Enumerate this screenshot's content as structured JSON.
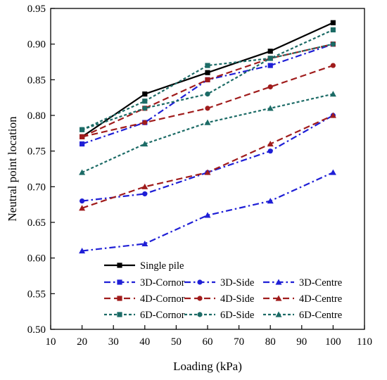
{
  "chart_data": {
    "type": "line",
    "xlabel": "Loading (kPa)",
    "ylabel": "Neutral point location",
    "xlim": [
      10,
      110
    ],
    "ylim": [
      0.5,
      0.95
    ],
    "xticks": [
      "10",
      "20",
      "30",
      "40",
      "50",
      "60",
      "70",
      "80",
      "90",
      "100",
      "110"
    ],
    "yticks": [
      "0.50",
      "0.55",
      "0.60",
      "0.65",
      "0.70",
      "0.75",
      "0.80",
      "0.85",
      "0.90",
      "0.95"
    ],
    "grid": false,
    "legend_position": "bottom-center",
    "x": [
      20,
      40,
      60,
      80,
      100
    ],
    "series": [
      {
        "name": "Single pile",
        "values": [
          0.77,
          0.83,
          0.86,
          0.89,
          0.93
        ],
        "color": "#000000",
        "dash": "solid",
        "marker": "square"
      },
      {
        "name": "3D-Cornor",
        "values": [
          0.76,
          0.79,
          0.85,
          0.87,
          0.9
        ],
        "color": "#1f1fd6",
        "dash": "dashdot",
        "marker": "square"
      },
      {
        "name": "3D-Side",
        "values": [
          0.68,
          0.69,
          0.72,
          0.75,
          0.8
        ],
        "color": "#1f1fd6",
        "dash": "dashdot",
        "marker": "circle"
      },
      {
        "name": "3D-Centre",
        "values": [
          0.61,
          0.62,
          0.66,
          0.68,
          0.72
        ],
        "color": "#1f1fd6",
        "dash": "dashdot",
        "marker": "triangle"
      },
      {
        "name": "4D-Cornor",
        "values": [
          0.77,
          0.81,
          0.85,
          0.88,
          0.9
        ],
        "color": "#a01c1c",
        "dash": "dashed",
        "marker": "square"
      },
      {
        "name": "4D-Side",
        "values": [
          0.77,
          0.79,
          0.81,
          0.84,
          0.87
        ],
        "color": "#a01c1c",
        "dash": "dashed",
        "marker": "circle"
      },
      {
        "name": "4D-Centre",
        "values": [
          0.67,
          0.7,
          0.72,
          0.76,
          0.8
        ],
        "color": "#a01c1c",
        "dash": "dashed",
        "marker": "triangle"
      },
      {
        "name": "6D-Cornor",
        "values": [
          0.78,
          0.82,
          0.87,
          0.88,
          0.92
        ],
        "color": "#1c6b66",
        "dash": "dotted",
        "marker": "square"
      },
      {
        "name": "6D-Side",
        "values": [
          0.78,
          0.81,
          0.83,
          0.88,
          0.9
        ],
        "color": "#1c6b66",
        "dash": "dotted",
        "marker": "circle"
      },
      {
        "name": "6D-Centre",
        "values": [
          0.72,
          0.76,
          0.79,
          0.81,
          0.83
        ],
        "color": "#1c6b66",
        "dash": "dotted",
        "marker": "triangle"
      }
    ]
  }
}
